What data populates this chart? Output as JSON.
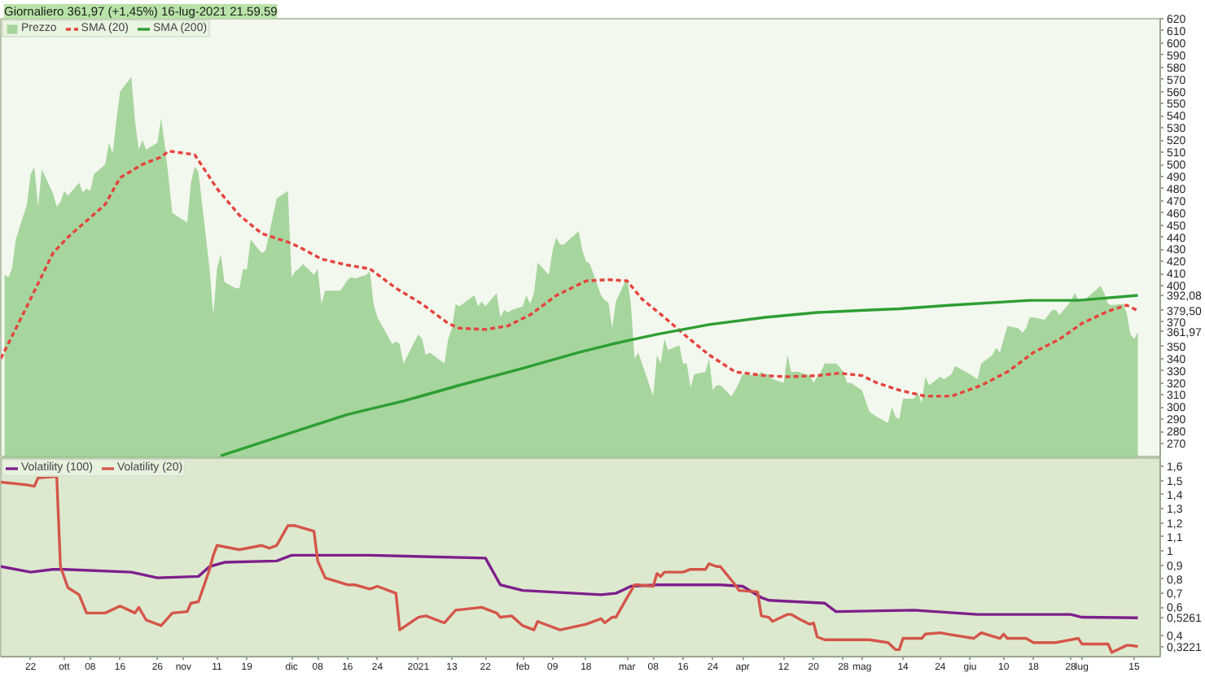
{
  "chart_data": [
    {
      "type": "line",
      "title": "Giornaliero 361,97 (+1,45%) 16-lug-2021 21.59.59",
      "xlim": [
        "2020-09-14",
        "2021-07-22"
      ],
      "ylim": [
        258,
        620
      ],
      "tick_labels": "y",
      "legend": "top left",
      "yticks": [
        270,
        280,
        290,
        300,
        310,
        320,
        330,
        340,
        350,
        {
          "value": 361.97,
          "label": "361,97"
        },
        370,
        {
          "value": 379.5,
          "label": "379,50"
        },
        {
          "value": 392.08,
          "label": "392,08"
        },
        400,
        410,
        420,
        430,
        440,
        450,
        460,
        470,
        480,
        490,
        500,
        510,
        520,
        530,
        540,
        550,
        560,
        570,
        580,
        590,
        600,
        610,
        620
      ],
      "series": [
        {
          "name": "Prezzo",
          "type": "area",
          "color": "#93cc8a",
          "x": [
            "2020-09-15",
            "2020-09-16",
            "2020-09-17",
            "2020-09-18",
            "2020-09-21",
            "2020-09-22",
            "2020-09-23",
            "2020-09-24",
            "2020-09-25",
            "2020-09-28",
            "2020-09-29",
            "2020-09-30",
            "2020-10-01",
            "2020-10-02",
            "2020-10-05",
            "2020-10-06",
            "2020-10-07",
            "2020-10-08",
            "2020-10-09",
            "2020-10-12",
            "2020-10-13",
            "2020-10-14",
            "2020-10-15",
            "2020-10-16",
            "2020-10-19",
            "2020-10-20",
            "2020-10-21",
            "2020-10-22",
            "2020-10-23",
            "2020-10-26",
            "2020-10-27",
            "2020-10-28",
            "2020-10-29",
            "2020-10-30",
            "2020-11-02",
            "2020-11-03",
            "2020-11-04",
            "2020-11-05",
            "2020-11-06",
            "2020-11-09",
            "2020-11-10",
            "2020-11-11",
            "2020-11-12",
            "2020-11-13",
            "2020-11-16",
            "2020-11-17",
            "2020-11-18",
            "2020-11-19",
            "2020-11-20",
            "2020-11-23",
            "2020-11-24",
            "2020-11-25",
            "2020-11-27",
            "2020-11-30",
            "2020-12-01",
            "2020-12-02",
            "2020-12-03",
            "2020-12-04",
            "2020-12-07",
            "2020-12-08",
            "2020-12-09",
            "2020-12-10",
            "2020-12-11",
            "2020-12-14",
            "2020-12-15",
            "2020-12-16",
            "2020-12-17",
            "2020-12-18",
            "2020-12-21",
            "2020-12-22",
            "2020-12-23",
            "2020-12-24",
            "2020-12-28",
            "2020-12-29",
            "2020-12-30",
            "2020-12-31",
            "2021-01-04",
            "2021-01-05",
            "2021-01-06",
            "2021-01-07",
            "2021-01-08",
            "2021-01-11",
            "2021-01-12",
            "2021-01-13",
            "2021-01-14",
            "2021-01-15",
            "2021-01-19",
            "2021-01-20",
            "2021-01-21",
            "2021-01-22",
            "2021-01-25",
            "2021-01-26",
            "2021-01-27",
            "2021-01-28",
            "2021-01-29",
            "2021-02-01",
            "2021-02-02",
            "2021-02-03",
            "2021-02-04",
            "2021-02-05",
            "2021-02-08",
            "2021-02-09",
            "2021-02-10",
            "2021-02-11",
            "2021-02-12",
            "2021-02-16",
            "2021-02-17",
            "2021-02-18",
            "2021-02-19",
            "2021-02-22",
            "2021-02-23",
            "2021-02-24",
            "2021-02-25",
            "2021-02-26",
            "2021-03-01",
            "2021-03-02",
            "2021-03-03",
            "2021-03-04",
            "2021-03-05",
            "2021-03-08",
            "2021-03-09",
            "2021-03-10",
            "2021-03-11",
            "2021-03-12",
            "2021-03-15",
            "2021-03-16",
            "2021-03-17",
            "2021-03-18",
            "2021-03-19",
            "2021-03-22",
            "2021-03-23",
            "2021-03-24",
            "2021-03-25",
            "2021-03-26",
            "2021-03-29",
            "2021-03-30",
            "2021-03-31",
            "2021-04-01",
            "2021-04-05",
            "2021-04-06",
            "2021-04-07",
            "2021-04-08",
            "2021-04-09",
            "2021-04-12",
            "2021-04-13",
            "2021-04-14",
            "2021-04-15",
            "2021-04-16",
            "2021-04-19",
            "2021-04-20",
            "2021-04-21",
            "2021-04-22",
            "2021-04-23",
            "2021-04-26",
            "2021-04-27",
            "2021-04-28",
            "2021-04-29",
            "2021-04-30",
            "2021-05-03",
            "2021-05-04",
            "2021-05-05",
            "2021-05-06",
            "2021-05-07",
            "2021-05-10",
            "2021-05-11",
            "2021-05-12",
            "2021-05-13",
            "2021-05-14",
            "2021-05-17",
            "2021-05-18",
            "2021-05-19",
            "2021-05-20",
            "2021-05-21",
            "2021-05-24",
            "2021-05-25",
            "2021-05-26",
            "2021-05-27",
            "2021-05-28",
            "2021-06-01",
            "2021-06-02",
            "2021-06-03",
            "2021-06-04",
            "2021-06-07",
            "2021-06-08",
            "2021-06-09",
            "2021-06-10",
            "2021-06-11",
            "2021-06-14",
            "2021-06-15",
            "2021-06-16",
            "2021-06-17",
            "2021-06-18",
            "2021-06-21",
            "2021-06-22",
            "2021-06-23",
            "2021-06-24",
            "2021-06-25",
            "2021-06-28",
            "2021-06-29",
            "2021-06-30",
            "2021-07-01",
            "2021-07-02",
            "2021-07-06",
            "2021-07-07",
            "2021-07-08",
            "2021-07-09",
            "2021-07-12",
            "2021-07-13",
            "2021-07-14",
            "2021-07-15",
            "2021-07-16"
          ],
          "values": [
            409,
            407,
            414,
            438,
            467,
            492,
            498,
            465,
            496,
            476,
            465,
            469,
            478,
            474,
            485,
            477,
            480,
            478,
            492,
            500,
            518,
            509,
            536,
            560,
            572,
            536,
            512,
            520,
            512,
            518,
            538,
            516,
            489,
            460,
            454,
            452,
            485,
            498,
            494,
            414,
            376,
            414,
            426,
            403,
            398,
            398,
            414,
            413,
            438,
            427,
            429,
            443,
            472,
            478,
            407,
            412,
            414,
            418,
            409,
            414,
            385,
            396,
            396,
            396,
            400,
            405,
            407,
            406,
            409,
            412,
            385,
            374,
            352,
            354,
            352,
            336,
            360,
            356,
            343,
            345,
            343,
            336,
            356,
            365,
            385,
            383,
            392,
            383,
            387,
            383,
            394,
            374,
            380,
            378,
            380,
            383,
            392,
            385,
            394,
            419,
            409,
            429,
            440,
            434,
            434,
            445,
            429,
            420,
            418,
            392,
            388,
            386,
            365,
            387,
            407,
            385,
            340,
            345,
            336,
            309,
            343,
            336,
            356,
            347,
            351,
            336,
            336,
            316,
            327,
            329,
            340,
            314,
            318,
            318,
            309,
            314,
            320,
            327,
            326,
            329,
            327,
            327,
            323,
            320,
            343,
            329,
            329,
            329,
            326,
            320,
            325,
            329,
            336,
            336,
            333,
            329,
            320,
            320,
            314,
            305,
            296,
            294,
            292,
            287,
            300,
            292,
            290,
            307,
            307,
            312,
            303,
            325,
            318,
            325,
            323,
            325,
            327,
            334,
            327,
            325,
            323,
            336,
            343,
            349,
            345,
            356,
            367,
            365,
            361,
            365,
            374,
            374,
            372,
            376,
            380,
            380,
            376,
            387,
            394,
            389,
            387,
            389,
            400,
            394,
            385,
            384,
            385,
            378,
            360,
            356,
            361.97
          ]
        },
        {
          "name": "SMA (20)",
          "line_style": "dashed",
          "color": "#e5443c",
          "x": [
            "2020-09-14",
            "2020-09-21",
            "2020-09-28",
            "2020-10-02",
            "2020-10-12",
            "2020-10-16",
            "2020-10-22",
            "2020-10-27",
            "2020-10-29",
            "2020-11-05",
            "2020-11-11",
            "2020-11-17",
            "2020-11-23",
            "2020-11-30",
            "2020-12-03",
            "2020-12-09",
            "2020-12-16",
            "2020-12-22",
            "2020-12-29",
            "2021-01-05",
            "2021-01-12",
            "2021-01-15",
            "2021-01-22",
            "2021-01-28",
            "2021-02-03",
            "2021-02-10",
            "2021-02-18",
            "2021-02-24",
            "2021-03-01",
            "2021-03-05",
            "2021-03-11",
            "2021-03-17",
            "2021-03-23",
            "2021-03-30",
            "2021-04-07",
            "2021-04-13",
            "2021-04-21",
            "2021-04-27",
            "2021-05-03",
            "2021-05-07",
            "2021-05-13",
            "2021-05-20",
            "2021-05-27",
            "2021-06-04",
            "2021-06-11",
            "2021-06-18",
            "2021-06-25",
            "2021-07-01",
            "2021-07-08",
            "2021-07-13",
            "2021-07-16"
          ],
          "values": [
            340,
            383,
            427,
            440,
            467,
            489,
            500,
            506,
            511,
            508,
            480,
            458,
            443,
            436,
            432,
            422,
            417,
            414,
            398,
            385,
            369,
            365,
            364,
            367,
            376,
            392,
            404,
            405,
            404,
            389,
            374,
            358,
            343,
            329,
            326,
            325,
            326,
            328,
            326,
            320,
            314,
            309,
            309,
            318,
            329,
            345,
            356,
            369,
            379,
            384,
            379.5
          ]
        },
        {
          "name": "SMA (200)",
          "color": "#2e9e34",
          "x": [
            "2020-11-12",
            "2020-12-03",
            "2020-12-16",
            "2020-12-31",
            "2021-01-15",
            "2021-02-01",
            "2021-02-16",
            "2021-02-25",
            "2021-03-09",
            "2021-03-23",
            "2021-04-07",
            "2021-04-21",
            "2021-05-05",
            "2021-05-13",
            "2021-05-27",
            "2021-06-17",
            "2021-06-30",
            "2021-07-16"
          ],
          "values": [
            260,
            281,
            294,
            305,
            318,
            332,
            345,
            352,
            360,
            368,
            374,
            378,
            380,
            381,
            384,
            388,
            388,
            392.08
          ]
        }
      ]
    },
    {
      "type": "line",
      "xlim": [
        "2020-09-14",
        "2021-07-22"
      ],
      "ylim": [
        0.25,
        1.66
      ],
      "legend": "top left",
      "xticks": [
        {
          "value": "2020-09-22",
          "label": "22"
        },
        {
          "value": "2020-10-01",
          "label": "ott"
        },
        {
          "value": "2020-10-08",
          "label": "08"
        },
        {
          "value": "2020-10-16",
          "label": "16"
        },
        {
          "value": "2020-10-26",
          "label": "26"
        },
        {
          "value": "2020-11-02",
          "label": "nov"
        },
        {
          "value": "2020-11-11",
          "label": "11"
        },
        {
          "value": "2020-11-19",
          "label": "19"
        },
        {
          "value": "2020-12-01",
          "label": "dic"
        },
        {
          "value": "2020-12-08",
          "label": "08"
        },
        {
          "value": "2020-12-16",
          "label": "16"
        },
        {
          "value": "2020-12-24",
          "label": "24"
        },
        {
          "value": "2021-01-04",
          "label": "2021"
        },
        {
          "value": "2021-01-13",
          "label": "13"
        },
        {
          "value": "2021-01-22",
          "label": "22"
        },
        {
          "value": "2021-02-01",
          "label": "feb"
        },
        {
          "value": "2021-02-09",
          "label": "09"
        },
        {
          "value": "2021-02-18",
          "label": "18"
        },
        {
          "value": "2021-03-01",
          "label": "mar"
        },
        {
          "value": "2021-03-08",
          "label": "08"
        },
        {
          "value": "2021-03-16",
          "label": "16"
        },
        {
          "value": "2021-03-24",
          "label": "24"
        },
        {
          "value": "2021-04-01",
          "label": "apr"
        },
        {
          "value": "2021-04-12",
          "label": "12"
        },
        {
          "value": "2021-04-20",
          "label": "20"
        },
        {
          "value": "2021-04-28",
          "label": "28"
        },
        {
          "value": "2021-05-03",
          "label": "mag"
        },
        {
          "value": "2021-05-14",
          "label": "14"
        },
        {
          "value": "2021-05-24",
          "label": "24"
        },
        {
          "value": "2021-06-01",
          "label": "giu"
        },
        {
          "value": "2021-06-10",
          "label": "10"
        },
        {
          "value": "2021-06-18",
          "label": "18"
        },
        {
          "value": "2021-06-28",
          "label": "28"
        },
        {
          "value": "2021-07-01",
          "label": "lug"
        },
        {
          "value": "2021-07-15",
          "label": "15"
        }
      ],
      "yticks": [
        {
          "value": 0.3221,
          "label": "0,3221"
        },
        {
          "value": 0.4,
          "label": "0,4"
        },
        {
          "value": 0.5261,
          "label": "0,5261"
        },
        {
          "value": 0.6,
          "label": "0,6"
        },
        {
          "value": 0.7,
          "label": "0,7"
        },
        {
          "value": 0.8,
          "label": "0,8"
        },
        {
          "value": 0.9,
          "label": "0,9"
        },
        1,
        {
          "value": 1.1,
          "label": "1,1"
        },
        {
          "value": 1.2,
          "label": "1,2"
        },
        {
          "value": 1.3,
          "label": "1,3"
        },
        {
          "value": 1.4,
          "label": "1,4"
        },
        {
          "value": 1.5,
          "label": "1,5"
        },
        {
          "value": 1.6,
          "label": "1,6"
        }
      ],
      "series": [
        {
          "name": "Volatility (100)",
          "color": "#7d1f8c",
          "x": [
            "2020-09-14",
            "2020-09-22",
            "2020-09-28",
            "2020-10-01",
            "2020-10-19",
            "2020-10-26",
            "2020-11-06",
            "2020-11-09",
            "2020-11-13",
            "2020-11-27",
            "2020-12-01",
            "2020-12-22",
            "2021-01-22",
            "2021-01-26",
            "2021-02-01",
            "2021-02-22",
            "2021-02-26",
            "2021-03-02",
            "2021-03-09",
            "2021-03-26",
            "2021-04-01",
            "2021-04-06",
            "2021-04-08",
            "2021-04-23",
            "2021-04-26",
            "2021-05-17",
            "2021-06-03",
            "2021-06-28",
            "2021-07-01",
            "2021-07-16"
          ],
          "values": [
            0.89,
            0.85,
            0.87,
            0.87,
            0.85,
            0.81,
            0.82,
            0.89,
            0.92,
            0.93,
            0.97,
            0.97,
            0.95,
            0.76,
            0.72,
            0.69,
            0.7,
            0.75,
            0.76,
            0.76,
            0.75,
            0.67,
            0.65,
            0.63,
            0.57,
            0.58,
            0.55,
            0.55,
            0.53,
            0.5261
          ]
        },
        {
          "name": "Volatility (20)",
          "color": "#d4564a",
          "x": [
            "2020-09-14",
            "2020-09-21",
            "2020-09-23",
            "2020-09-24",
            "2020-09-29",
            "2020-09-30",
            "2020-10-02",
            "2020-10-05",
            "2020-10-07",
            "2020-10-12",
            "2020-10-16",
            "2020-10-20",
            "2020-10-21",
            "2020-10-23",
            "2020-10-27",
            "2020-10-30",
            "2020-11-03",
            "2020-11-04",
            "2020-11-06",
            "2020-11-09",
            "2020-11-10",
            "2020-11-11",
            "2020-11-17",
            "2020-11-19",
            "2020-11-23",
            "2020-11-25",
            "2020-11-27",
            "2020-11-30",
            "2020-12-02",
            "2020-12-07",
            "2020-12-08",
            "2020-12-10",
            "2020-12-16",
            "2020-12-18",
            "2020-12-22",
            "2020-12-24",
            "2020-12-29",
            "2020-12-30",
            "2021-01-04",
            "2021-01-06",
            "2021-01-11",
            "2021-01-13",
            "2021-01-14",
            "2021-01-21",
            "2021-01-25",
            "2021-01-26",
            "2021-01-29",
            "2021-02-01",
            "2021-02-04",
            "2021-02-05",
            "2021-02-11",
            "2021-02-18",
            "2021-02-22",
            "2021-02-23",
            "2021-02-25",
            "2021-02-26",
            "2021-03-01",
            "2021-03-03",
            "2021-03-04",
            "2021-03-08",
            "2021-03-09",
            "2021-03-10",
            "2021-03-11",
            "2021-03-16",
            "2021-03-18",
            "2021-03-22",
            "2021-03-23",
            "2021-03-25",
            "2021-03-26",
            "2021-03-30",
            "2021-03-31",
            "2021-04-05",
            "2021-04-06",
            "2021-04-08",
            "2021-04-09",
            "2021-04-13",
            "2021-04-14",
            "2021-04-16",
            "2021-04-19",
            "2021-04-20",
            "2021-04-21",
            "2021-04-23",
            "2021-04-28",
            "2021-05-05",
            "2021-05-10",
            "2021-05-12",
            "2021-05-13",
            "2021-05-14",
            "2021-05-19",
            "2021-05-20",
            "2021-05-24",
            "2021-05-26",
            "2021-06-02",
            "2021-06-04",
            "2021-06-09",
            "2021-06-10",
            "2021-06-11",
            "2021-06-16",
            "2021-06-18",
            "2021-06-24",
            "2021-06-28",
            "2021-06-30",
            "2021-07-01",
            "2021-07-06",
            "2021-07-08",
            "2021-07-09",
            "2021-07-13",
            "2021-07-14",
            "2021-07-16"
          ],
          "values": [
            1.49,
            1.47,
            1.46,
            1.52,
            1.53,
            0.89,
            0.74,
            0.69,
            0.56,
            0.56,
            0.61,
            0.56,
            0.6,
            0.51,
            0.47,
            0.56,
            0.57,
            0.63,
            0.64,
            0.87,
            0.97,
            1.04,
            1.01,
            1.02,
            1.04,
            1.02,
            1.04,
            1.18,
            1.18,
            1.14,
            0.93,
            0.81,
            0.76,
            0.76,
            0.73,
            0.75,
            0.7,
            0.44,
            0.53,
            0.54,
            0.49,
            0.55,
            0.58,
            0.6,
            0.56,
            0.53,
            0.54,
            0.47,
            0.44,
            0.5,
            0.44,
            0.48,
            0.52,
            0.49,
            0.53,
            0.53,
            0.67,
            0.76,
            0.76,
            0.75,
            0.84,
            0.82,
            0.85,
            0.85,
            0.87,
            0.87,
            0.91,
            0.89,
            0.89,
            0.76,
            0.72,
            0.71,
            0.54,
            0.53,
            0.5,
            0.55,
            0.55,
            0.52,
            0.48,
            0.49,
            0.39,
            0.37,
            0.37,
            0.37,
            0.35,
            0.3,
            0.3,
            0.38,
            0.38,
            0.41,
            0.42,
            0.41,
            0.38,
            0.42,
            0.38,
            0.41,
            0.38,
            0.38,
            0.35,
            0.35,
            0.37,
            0.38,
            0.34,
            0.34,
            0.34,
            0.28,
            0.33,
            0.33,
            0.3221
          ]
        }
      ]
    }
  ]
}
